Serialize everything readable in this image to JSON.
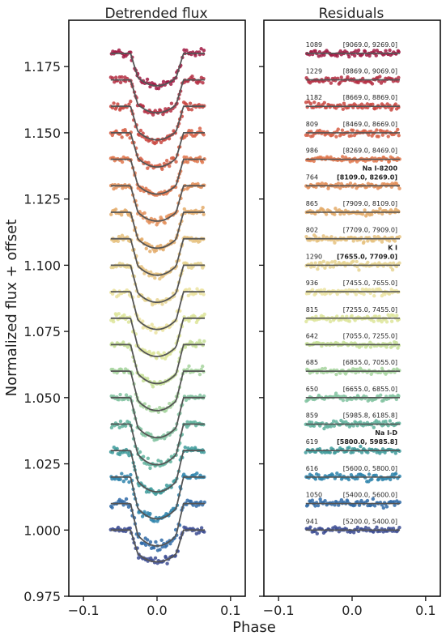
{
  "figure": {
    "ylabel": "Normalized flux + offset",
    "xlabel": "Phase"
  },
  "chart_data": [
    {
      "type": "scatter",
      "title": "Detrended flux",
      "xlim": [
        -0.12,
        0.12
      ],
      "ylim": [
        0.975,
        1.1925
      ],
      "xticks": [
        -0.1,
        0.0,
        0.1
      ],
      "xtick_labels": [
        "−0.1",
        "0.0",
        "0.1"
      ],
      "yticks": [
        0.975,
        1.0,
        1.025,
        1.05,
        1.075,
        1.1,
        1.125,
        1.15,
        1.175
      ],
      "ytick_labels": [
        "0.975",
        "1.000",
        "1.025",
        "1.050",
        "1.075",
        "1.100",
        "1.125",
        "1.150",
        "1.175"
      ],
      "phase_range": [
        -0.063,
        0.065
      ],
      "transit_depth_range": [
        0.012,
        0.016
      ],
      "offsets": [
        1.0,
        1.01,
        1.02,
        1.03,
        1.04,
        1.05,
        1.06,
        1.07,
        1.08,
        1.09,
        1.1,
        1.11,
        1.12,
        1.13,
        1.14,
        1.15,
        1.16,
        1.17,
        1.18
      ],
      "grid": false
    },
    {
      "type": "scatter",
      "title": "Residuals",
      "xlim": [
        -0.12,
        0.12
      ],
      "xticks": [
        -0.1,
        0.0,
        0.1
      ],
      "xtick_labels": [
        "−0.1",
        "0.0",
        "0.1"
      ],
      "offsets": [
        1.0,
        1.01,
        1.02,
        1.03,
        1.04,
        1.05,
        1.06,
        1.07,
        1.08,
        1.09,
        1.1,
        1.11,
        1.12,
        1.13,
        1.14,
        1.15,
        1.16,
        1.17,
        1.18
      ],
      "annotations": [
        {
          "rms": "941",
          "range": "[5200.0, 5400.0]"
        },
        {
          "rms": "1050",
          "range": "[5400.0, 5600.0]"
        },
        {
          "rms": "616",
          "range": "[5600.0, 5800.0]"
        },
        {
          "rms": "619",
          "range": "[5800.0, 5985.8]",
          "label": "Na I-D",
          "bold": true
        },
        {
          "rms": "859",
          "range": "[5985.8, 6185.8]"
        },
        {
          "rms": "650",
          "range": "[6655.0, 6855.0]"
        },
        {
          "rms": "685",
          "range": "[6855.0, 7055.0]"
        },
        {
          "rms": "642",
          "range": "[7055.0, 7255.0]"
        },
        {
          "rms": "815",
          "range": "[7255.0, 7455.0]"
        },
        {
          "rms": "936",
          "range": "[7455.0, 7655.0]"
        },
        {
          "rms": "1290",
          "range": "[7655.0, 7709.0]",
          "label": "K I",
          "bold": true
        },
        {
          "rms": "802",
          "range": "[7709.0, 7909.0]"
        },
        {
          "rms": "865",
          "range": "[7909.0, 8109.0]"
        },
        {
          "rms": "764",
          "range": "[8109.0, 8269.0]",
          "label": "Na I-8200",
          "bold": true
        },
        {
          "rms": "986",
          "range": "[8269.0, 8469.0]"
        },
        {
          "rms": "809",
          "range": "[8469.0, 8669.0]"
        },
        {
          "rms": "1182",
          "range": "[8669.0, 8869.0]"
        },
        {
          "rms": "1229",
          "range": "[8869.0, 9069.0]"
        },
        {
          "rms": "1089",
          "range": "[9069.0, 9269.0]"
        }
      ],
      "grid": false
    }
  ],
  "colors": {
    "series": [
      "#3c4c93",
      "#2f6aa7",
      "#2e84ac",
      "#3e9b9b",
      "#5fb19c",
      "#83c3a1",
      "#a6d39e",
      "#c6df97",
      "#dde59a",
      "#ebe3a0",
      "#e6d490",
      "#e6c27f",
      "#e3aa69",
      "#e48f59",
      "#e0774c",
      "#d65f45",
      "#c9463f",
      "#b52f43",
      "#a11a43"
    ],
    "model_line": "#555555",
    "axes": "#111111"
  }
}
